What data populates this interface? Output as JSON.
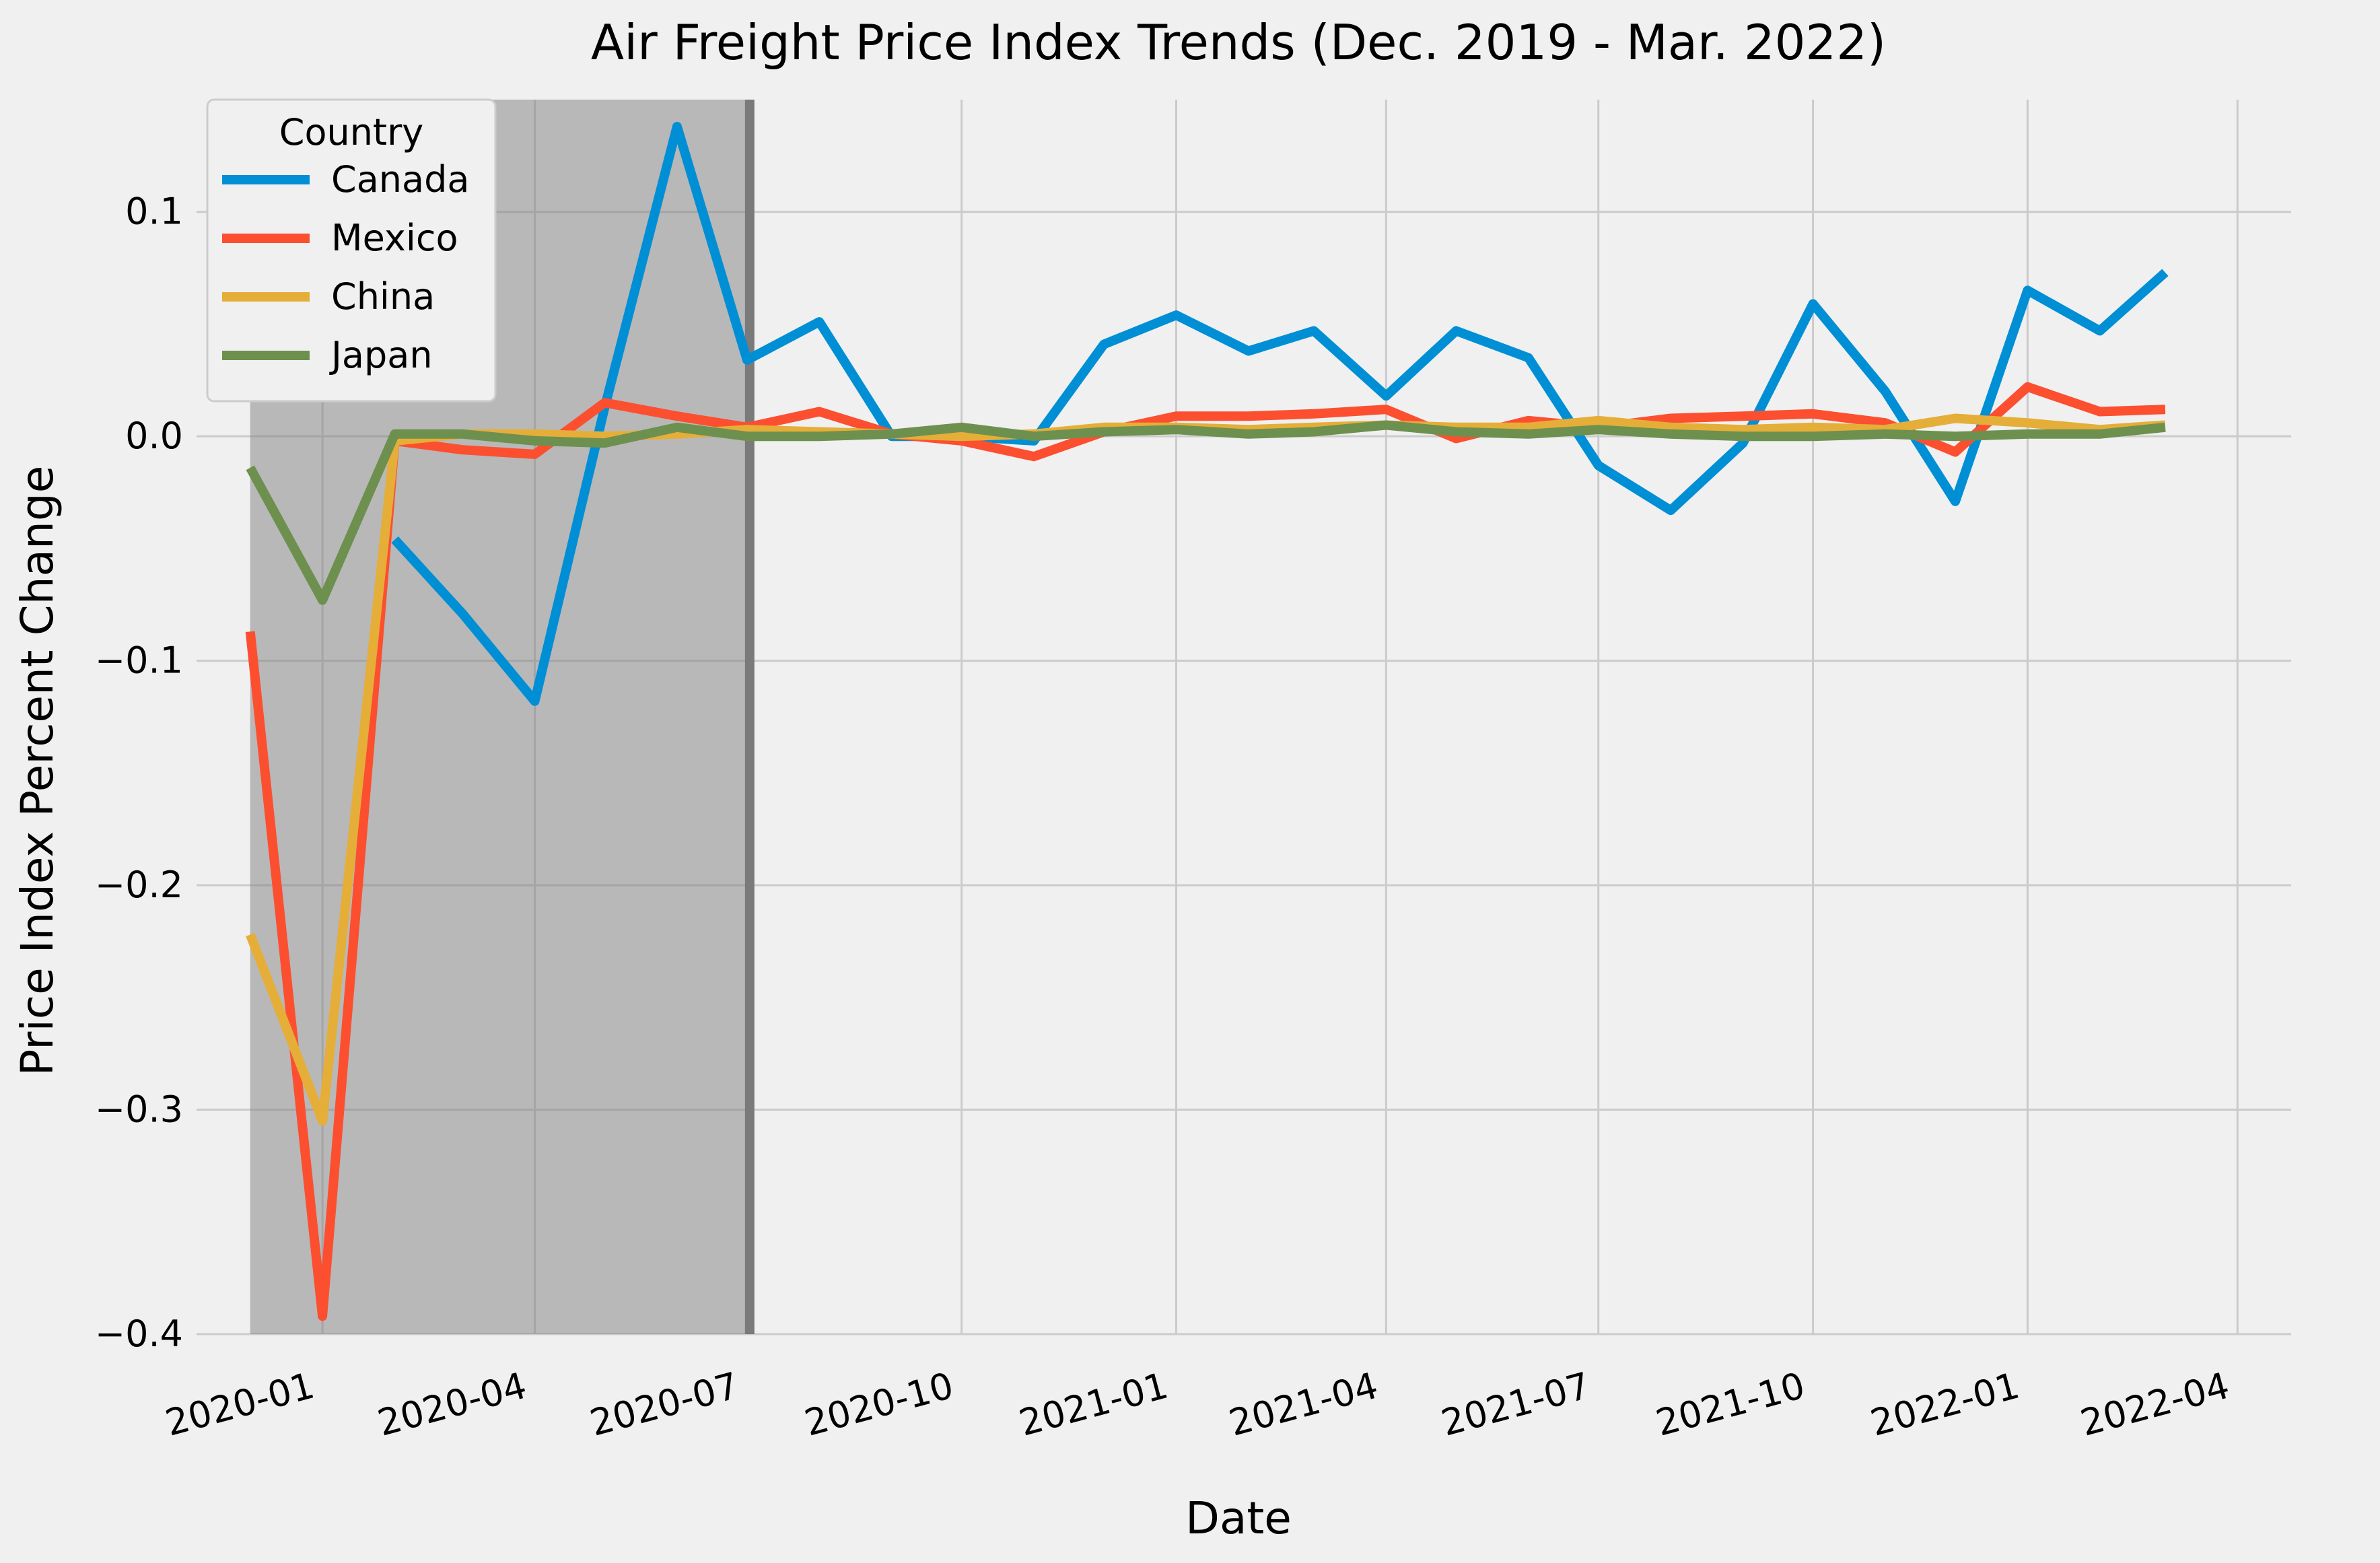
{
  "chart_data": {
    "type": "line",
    "title": "Air Freight Price Index Trends (Dec. 2019 - Mar. 2022)",
    "xlabel": "Date",
    "ylabel": "Price Index Percent Change",
    "legend": {
      "title": "Country",
      "placement": "top-left"
    },
    "grid": true,
    "ylim": [
      -0.4,
      0.15
    ],
    "yticks": [
      -0.4,
      -0.3,
      -0.2,
      -0.1,
      0.0,
      0.1
    ],
    "ytick_labels": [
      "−0.4",
      "−0.3",
      "−0.2",
      "−0.1",
      "0.0",
      "0.1"
    ],
    "xlim": [
      "2019-11-08",
      "2022-04-24"
    ],
    "xticks": [
      "2020-01-01",
      "2020-04-01",
      "2020-07-01",
      "2020-10-01",
      "2021-01-01",
      "2021-04-01",
      "2021-07-01",
      "2021-10-01",
      "2022-01-01",
      "2022-04-01"
    ],
    "xtick_labels": [
      "2020-01",
      "2020-04",
      "2020-07",
      "2020-10",
      "2021-01",
      "2021-04",
      "2021-07",
      "2021-10",
      "2022-01",
      "2022-04"
    ],
    "shaded_region": {
      "x": [
        "2019-12-01",
        "2020-07-01"
      ],
      "y": [
        -0.4,
        0.15
      ],
      "color": "#808080"
    },
    "x": [
      "2019-12-01",
      "2020-01-01",
      "2020-02-01",
      "2020-03-01",
      "2020-04-01",
      "2020-05-01",
      "2020-06-01",
      "2020-07-01",
      "2020-08-01",
      "2020-09-01",
      "2020-10-01",
      "2020-11-01",
      "2020-12-01",
      "2021-01-01",
      "2021-02-01",
      "2021-03-01",
      "2021-04-01",
      "2021-05-01",
      "2021-06-01",
      "2021-07-01",
      "2021-08-01",
      "2021-09-01",
      "2021-10-01",
      "2021-11-01",
      "2021-12-01",
      "2022-01-01",
      "2022-02-01",
      "2022-03-01"
    ],
    "series": [
      {
        "name": "Canada",
        "color": "#008fd5",
        "values": [
          null,
          null,
          -0.046,
          -0.079,
          -0.118,
          0.013,
          0.138,
          0.034,
          0.051,
          0.0,
          0.0,
          -0.002,
          0.041,
          0.054,
          0.038,
          0.047,
          0.018,
          0.047,
          0.035,
          -0.013,
          -0.033,
          -0.003,
          0.059,
          0.02,
          -0.029,
          0.065,
          0.047,
          0.073
        ]
      },
      {
        "name": "Mexico",
        "color": "#fc4f30",
        "values": [
          -0.087,
          -0.392,
          -0.002,
          -0.006,
          -0.008,
          0.015,
          0.009,
          0.004,
          0.011,
          0.001,
          -0.002,
          -0.009,
          0.002,
          0.009,
          0.009,
          0.01,
          0.012,
          -0.001,
          0.007,
          0.004,
          0.008,
          0.009,
          0.01,
          0.006,
          -0.007,
          0.022,
          0.011,
          0.012
        ]
      },
      {
        "name": "China",
        "color": "#e5ae38",
        "values": [
          -0.222,
          -0.305,
          -0.002,
          0.001,
          0.001,
          0.0,
          0.001,
          0.003,
          0.002,
          0.001,
          0.0,
          0.001,
          0.004,
          0.004,
          0.003,
          0.004,
          0.005,
          0.004,
          0.004,
          0.007,
          0.004,
          0.003,
          0.004,
          0.003,
          0.008,
          0.006,
          0.003,
          0.005
        ]
      },
      {
        "name": "Japan",
        "color": "#6d904f",
        "values": [
          -0.014,
          -0.073,
          0.001,
          0.001,
          -0.002,
          -0.003,
          0.004,
          0.0,
          0.0,
          0.001,
          0.004,
          0.0,
          0.002,
          0.003,
          0.001,
          0.002,
          0.005,
          0.002,
          0.001,
          0.003,
          0.001,
          0.0,
          0.0,
          0.001,
          0.0,
          0.001,
          0.001,
          0.004
        ]
      }
    ]
  }
}
